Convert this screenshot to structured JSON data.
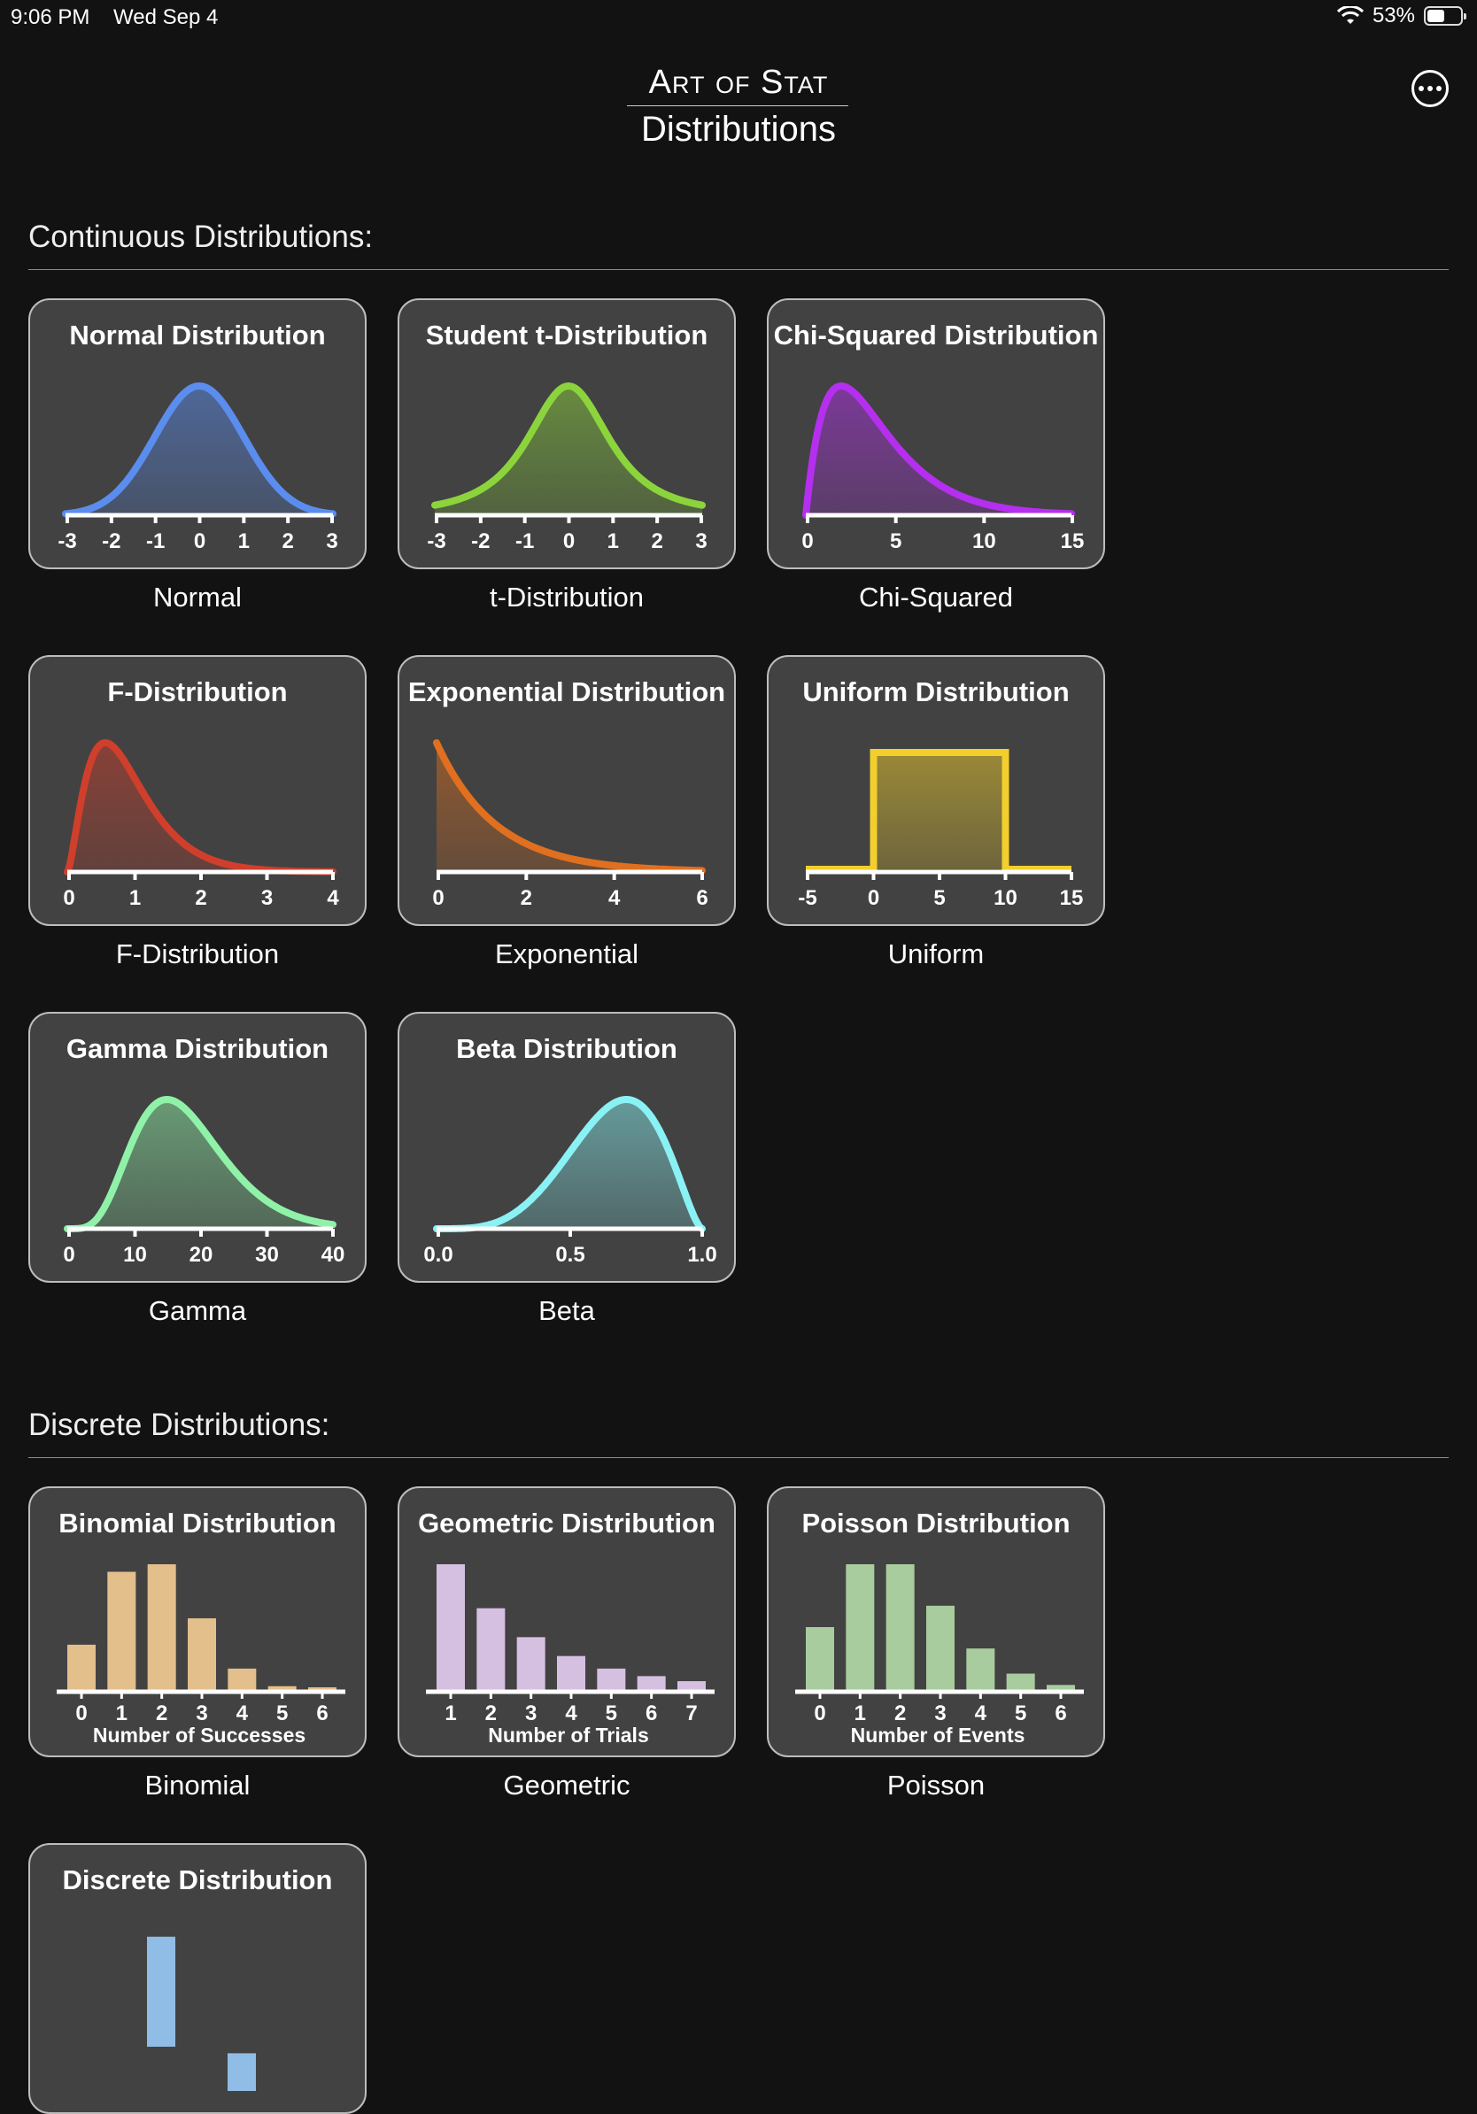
{
  "status": {
    "time": "9:06 PM",
    "date": "Wed Sep 4",
    "battery": "53%",
    "battery_level": 0.53
  },
  "header": {
    "brand": "Art of Stat",
    "title": "Distributions"
  },
  "sections": {
    "continuous": "Continuous Distributions:",
    "discrete": "Discrete Distributions:"
  },
  "colors": {
    "normal": "#5b8def",
    "t": "#8cd43c",
    "chi": "#b52fef",
    "f": "#cf3f2c",
    "exp": "#e0701f",
    "uniform": "#f2cf2c",
    "gamma": "#8ff2a8",
    "beta": "#8af2f4",
    "binomial": "#e3bf8c",
    "geometric": "#d6c0e2",
    "poisson": "#a8cc9e",
    "discrete": "#8fbde6"
  },
  "cards": {
    "normal": {
      "title": "Normal Distribution",
      "label": "Normal",
      "ticks": [
        "-3",
        "-2",
        "-1",
        "0",
        "1",
        "2",
        "3"
      ]
    },
    "t": {
      "title": "Student t-Distribution",
      "label": "t-Distribution",
      "ticks": [
        "-3",
        "-2",
        "-1",
        "0",
        "1",
        "2",
        "3"
      ]
    },
    "chi": {
      "title": "Chi-Squared Distribution",
      "label": "Chi-Squared",
      "ticks": [
        "0",
        "5",
        "10",
        "15"
      ]
    },
    "f": {
      "title": "F-Distribution",
      "label": "F-Distribution",
      "ticks": [
        "0",
        "1",
        "2",
        "3",
        "4"
      ]
    },
    "exp": {
      "title": "Exponential Distribution",
      "label": "Exponential",
      "ticks": [
        "0",
        "2",
        "4",
        "6"
      ]
    },
    "uniform": {
      "title": "Uniform Distribution",
      "label": "Uniform",
      "ticks": [
        "-5",
        "0",
        "5",
        "10",
        "15"
      ]
    },
    "gamma": {
      "title": "Gamma Distribution",
      "label": "Gamma",
      "ticks": [
        "0",
        "10",
        "20",
        "30",
        "40"
      ]
    },
    "beta": {
      "title": "Beta Distribution",
      "label": "Beta",
      "ticks": [
        "0.0",
        "0.5",
        "1.0"
      ]
    },
    "binomial": {
      "title": "Binomial Distribution",
      "label": "Binomial",
      "ticks": [
        "0",
        "1",
        "2",
        "3",
        "4",
        "5",
        "6"
      ],
      "axis_title": "Number of Successes",
      "bars": [
        0.36,
        0.94,
        1.0,
        0.57,
        0.17,
        0.03,
        0.005
      ]
    },
    "geometric": {
      "title": "Geometric Distribution",
      "label": "Geometric",
      "ticks": [
        "1",
        "2",
        "3",
        "4",
        "5",
        "6",
        "7"
      ],
      "axis_title": "Number of Trials",
      "bars": [
        1.0,
        0.65,
        0.42,
        0.27,
        0.17,
        0.11,
        0.07
      ]
    },
    "poisson": {
      "title": "Poisson Distribution",
      "label": "Poisson",
      "ticks": [
        "0",
        "1",
        "2",
        "3",
        "4",
        "5",
        "6"
      ],
      "axis_title": "Number of Events",
      "bars": [
        0.5,
        1.0,
        1.0,
        0.67,
        0.33,
        0.13,
        0.04
      ]
    },
    "discrete": {
      "title": "Discrete Distribution",
      "bars": [
        0.35,
        0.0,
        0.12
      ]
    }
  }
}
